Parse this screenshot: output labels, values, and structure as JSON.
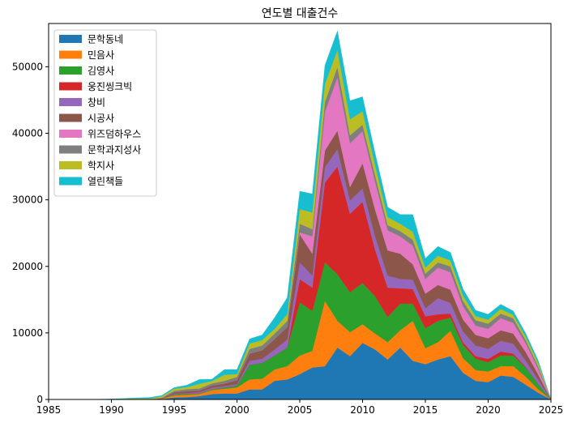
{
  "chart_data": {
    "type": "area",
    "stacked": true,
    "title": "연도별 대출건수",
    "xlabel": "",
    "ylabel": "",
    "xlim": [
      1985,
      2025
    ],
    "ylim": [
      0,
      56500
    ],
    "xticks": [
      1985,
      1990,
      1995,
      2000,
      2005,
      2010,
      2015,
      2020,
      2025
    ],
    "yticks": [
      0,
      10000,
      20000,
      30000,
      40000,
      50000
    ],
    "legend_position": "upper-left",
    "x": [
      1985,
      1986,
      1987,
      1988,
      1989,
      1990,
      1991,
      1992,
      1993,
      1994,
      1995,
      1996,
      1997,
      1998,
      1999,
      2000,
      2001,
      2002,
      2003,
      2004,
      2005,
      2006,
      2007,
      2008,
      2009,
      2010,
      2011,
      2012,
      2013,
      2014,
      2015,
      2016,
      2017,
      2018,
      2019,
      2020,
      2021,
      2022,
      2023,
      2024,
      2025
    ],
    "series": [
      {
        "name": "문학동네",
        "color": "#1f77b4",
        "values": [
          0,
          0,
          0,
          0,
          0,
          0,
          0,
          0,
          0,
          50,
          300,
          350,
          500,
          800,
          900,
          900,
          1500,
          1500,
          2800,
          3000,
          3800,
          4800,
          5000,
          7800,
          6500,
          8500,
          7500,
          6000,
          7800,
          5800,
          5300,
          6000,
          6500,
          4000,
          2800,
          2600,
          3600,
          3400,
          2200,
          1000,
          0
        ]
      },
      {
        "name": "민음사",
        "color": "#ff7f0e",
        "values": [
          0,
          0,
          0,
          0,
          0,
          0,
          0,
          0,
          0,
          50,
          300,
          350,
          300,
          600,
          700,
          900,
          1500,
          1600,
          1700,
          2000,
          2800,
          2500,
          9800,
          4000,
          3600,
          2800,
          2400,
          2600,
          2600,
          6000,
          2400,
          2600,
          3800,
          2200,
          1600,
          1600,
          1400,
          1600,
          1200,
          500,
          0
        ]
      },
      {
        "name": "김영사",
        "color": "#2ca02c",
        "values": [
          0,
          0,
          0,
          0,
          0,
          0,
          0,
          0,
          0,
          20,
          150,
          150,
          100,
          150,
          200,
          300,
          2200,
          2400,
          2100,
          2800,
          8000,
          6000,
          5800,
          7000,
          6000,
          6200,
          5600,
          3800,
          4000,
          2600,
          3000,
          3200,
          2000,
          2000,
          1700,
          1400,
          1600,
          1600,
          1400,
          800,
          0
        ]
      },
      {
        "name": "웅진씽크빅",
        "color": "#d62728",
        "values": [
          0,
          0,
          0,
          0,
          0,
          0,
          0,
          0,
          0,
          0,
          0,
          0,
          0,
          0,
          0,
          0,
          0,
          0,
          0,
          0,
          3500,
          3500,
          12000,
          16200,
          11800,
          12200,
          7000,
          4400,
          2300,
          2200,
          1800,
          1000,
          600,
          400,
          400,
          500,
          600,
          300,
          100,
          0,
          0
        ]
      },
      {
        "name": "창비",
        "color": "#9467bd",
        "values": [
          0,
          0,
          0,
          0,
          0,
          0,
          0,
          0,
          0,
          20,
          100,
          100,
          200,
          200,
          200,
          200,
          600,
          600,
          900,
          1200,
          2500,
          1800,
          2300,
          2600,
          2000,
          2000,
          2000,
          1800,
          1400,
          1400,
          1200,
          2400,
          1600,
          1600,
          1600,
          1500,
          1600,
          1500,
          900,
          600,
          0
        ]
      },
      {
        "name": "시공사",
        "color": "#8c564b",
        "values": [
          0,
          0,
          0,
          0,
          0,
          0,
          0,
          0,
          0,
          50,
          250,
          300,
          250,
          350,
          400,
          600,
          1100,
          1300,
          1600,
          1900,
          4200,
          3300,
          2500,
          2800,
          2000,
          3800,
          4000,
          3800,
          3800,
          2300,
          2200,
          2000,
          2000,
          1800,
          1600,
          1600,
          1600,
          1500,
          1300,
          800,
          0
        ]
      },
      {
        "name": "위즈덤하우스",
        "color": "#e377c2",
        "values": [
          0,
          0,
          0,
          0,
          0,
          0,
          0,
          0,
          0,
          0,
          0,
          0,
          0,
          0,
          0,
          0,
          0,
          0,
          0,
          0,
          300,
          2600,
          5800,
          8000,
          6600,
          4800,
          4200,
          3000,
          2600,
          2800,
          2200,
          2600,
          2600,
          2000,
          1400,
          1400,
          1800,
          1600,
          1300,
          800,
          0
        ]
      },
      {
        "name": "문학과지성사",
        "color": "#7f7f7f",
        "values": [
          0,
          0,
          0,
          0,
          0,
          0,
          0,
          0,
          0,
          50,
          200,
          300,
          300,
          300,
          400,
          500,
          700,
          700,
          800,
          900,
          1300,
          1100,
          1500,
          1600,
          1200,
          1000,
          1000,
          800,
          800,
          900,
          800,
          800,
          900,
          800,
          800,
          800,
          700,
          700,
          500,
          400,
          0
        ]
      },
      {
        "name": "학지사",
        "color": "#bcbd22",
        "values": [
          0,
          0,
          0,
          0,
          10,
          50,
          100,
          150,
          150,
          200,
          300,
          300,
          700,
          350,
          900,
          400,
          800,
          800,
          700,
          1000,
          2200,
          2500,
          2700,
          2500,
          2400,
          2000,
          1500,
          1200,
          1100,
          1200,
          900,
          1000,
          900,
          800,
          600,
          600,
          700,
          500,
          500,
          500,
          0
        ]
      },
      {
        "name": "열린책들",
        "color": "#17becf",
        "values": [
          0,
          0,
          0,
          0,
          20,
          30,
          50,
          100,
          150,
          150,
          200,
          300,
          650,
          300,
          800,
          700,
          700,
          800,
          1700,
          2500,
          2700,
          2800,
          2800,
          2900,
          2800,
          2200,
          1800,
          1500,
          1400,
          2600,
          1400,
          1400,
          1200,
          1000,
          900,
          800,
          700,
          600,
          500,
          400,
          0
        ]
      }
    ]
  }
}
